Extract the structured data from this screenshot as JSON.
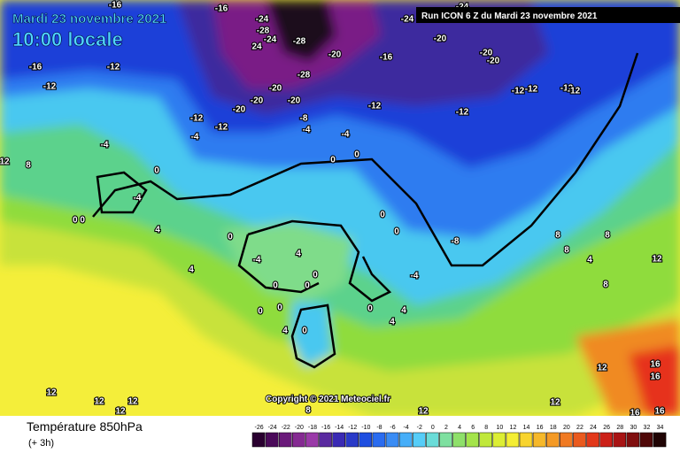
{
  "header": {
    "date": "Mardi 23 novembre 2021",
    "time": "10:00 locale",
    "run": "Run ICON 6 Z du Mardi 23 novembre 2021"
  },
  "copyright": "Copyright © 2021 Meteociel.fr",
  "footer": {
    "title": "Température 850hPa",
    "subtitle": "(+ 3h)"
  },
  "colorbar": {
    "labels": [
      "-26",
      "-24",
      "-22",
      "-20",
      "-18",
      "-16",
      "-14",
      "-12",
      "-10",
      "-8",
      "-6",
      "-4",
      "-2",
      "0",
      "2",
      "4",
      "6",
      "8",
      "10",
      "12",
      "14",
      "16",
      "18",
      "20",
      "22",
      "24",
      "26",
      "28",
      "30",
      "32",
      "34"
    ]
  },
  "map": {
    "labels": [
      "-16",
      "-16",
      "-24",
      "-28",
      "-24",
      "-28",
      "24",
      "-20",
      "-16",
      "-20",
      "-20",
      "-20",
      "-24",
      "-24",
      "-16",
      "-12",
      "-12",
      "-28",
      "-20",
      "-20",
      "-20",
      "-12",
      "-12",
      "-12",
      "-12",
      "-12",
      "-12",
      "-20",
      "-12",
      "-12",
      "-8",
      "-4",
      "-4",
      "-4",
      "0",
      "0",
      "-4",
      "8",
      "12",
      "0",
      "-4",
      "0 0",
      "4",
      "0",
      "0",
      "-8",
      "8",
      "8",
      "8",
      "4",
      "12",
      "4",
      "-4",
      "4",
      "0",
      "0",
      "0",
      "-4",
      "0",
      "0",
      "0",
      "4",
      "0",
      "4",
      "0",
      "4",
      "8",
      "12",
      "12",
      "16",
      "16",
      "16",
      "16",
      "12",
      "12",
      "12",
      "12",
      "8",
      "12"
    ]
  }
}
